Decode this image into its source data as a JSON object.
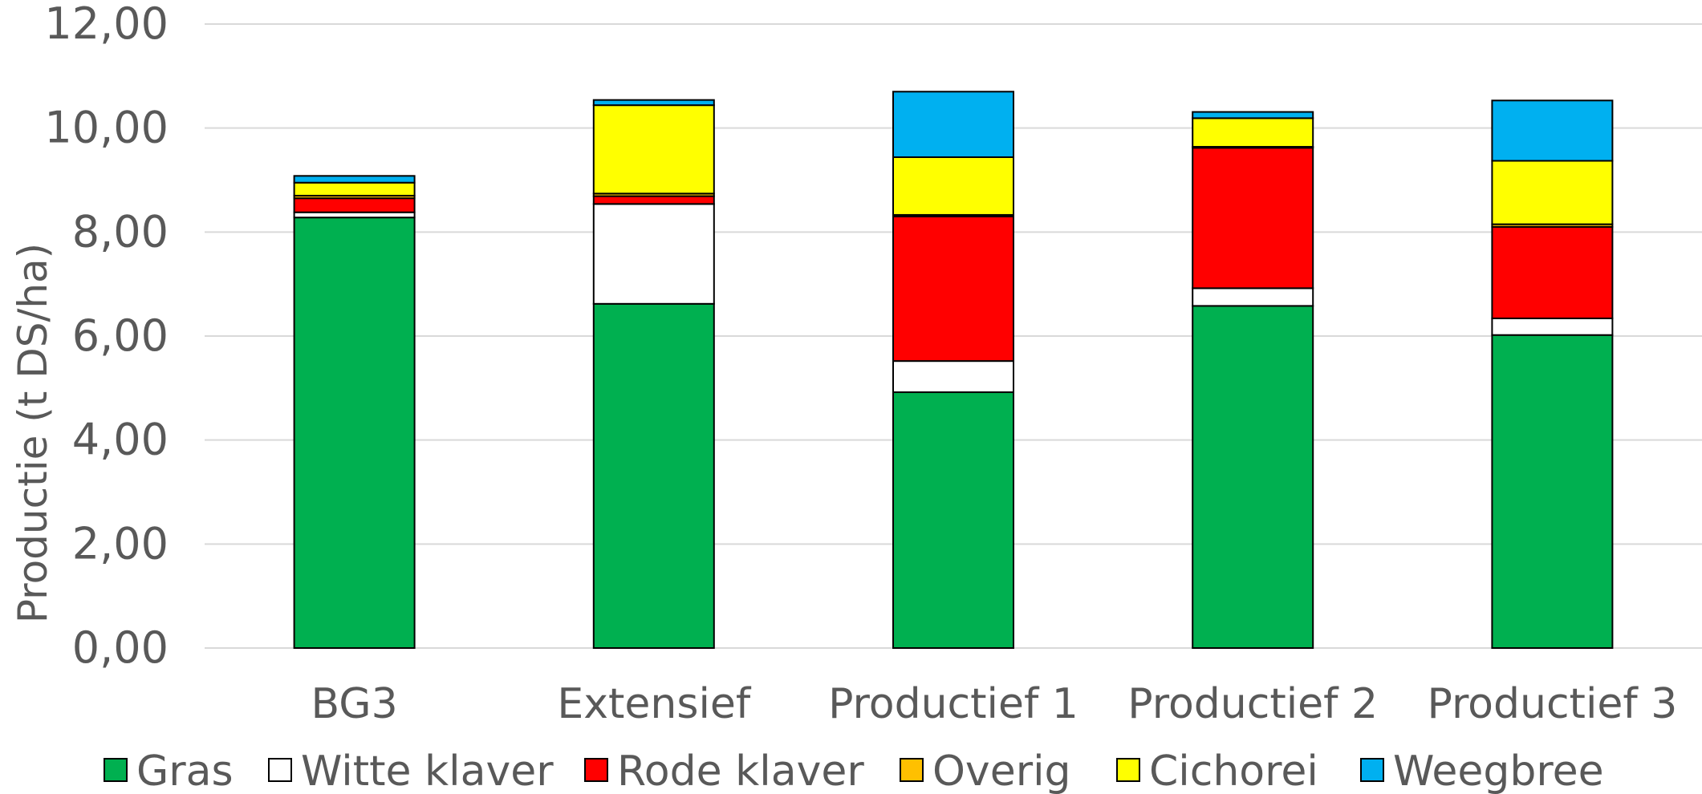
{
  "chart_data": {
    "type": "bar",
    "stacked": true,
    "ylabel": "Productie (t DS/ha)",
    "ylim": [
      0,
      12
    ],
    "yticks": [
      "0,00",
      "2,00",
      "4,00",
      "6,00",
      "8,00",
      "10,00",
      "12,00"
    ],
    "grid": true,
    "legend_position": "bottom",
    "categories": [
      "BG3",
      "Extensief",
      "Productief 1",
      "Productief 2",
      "Productief 3"
    ],
    "series": [
      {
        "name": "Gras",
        "color": "#00b050",
        "values": [
          8.28,
          6.62,
          4.92,
          6.58,
          6.02
        ]
      },
      {
        "name": "Witte klaver",
        "color": "#ffffff",
        "values": [
          0.1,
          1.92,
          0.6,
          0.34,
          0.32
        ]
      },
      {
        "name": "Rode klaver",
        "color": "#ff0000",
        "values": [
          0.27,
          0.15,
          2.78,
          2.7,
          1.76
        ]
      },
      {
        "name": "Overig",
        "color": "#ffc000",
        "values": [
          0.05,
          0.05,
          0.03,
          0.02,
          0.05
        ]
      },
      {
        "name": "Cichorei",
        "color": "#ffff00",
        "values": [
          0.25,
          1.7,
          1.11,
          0.55,
          1.22
        ]
      },
      {
        "name": "Weegbree",
        "color": "#00b0f0",
        "values": [
          0.13,
          0.1,
          1.26,
          0.12,
          1.16
        ]
      }
    ]
  }
}
